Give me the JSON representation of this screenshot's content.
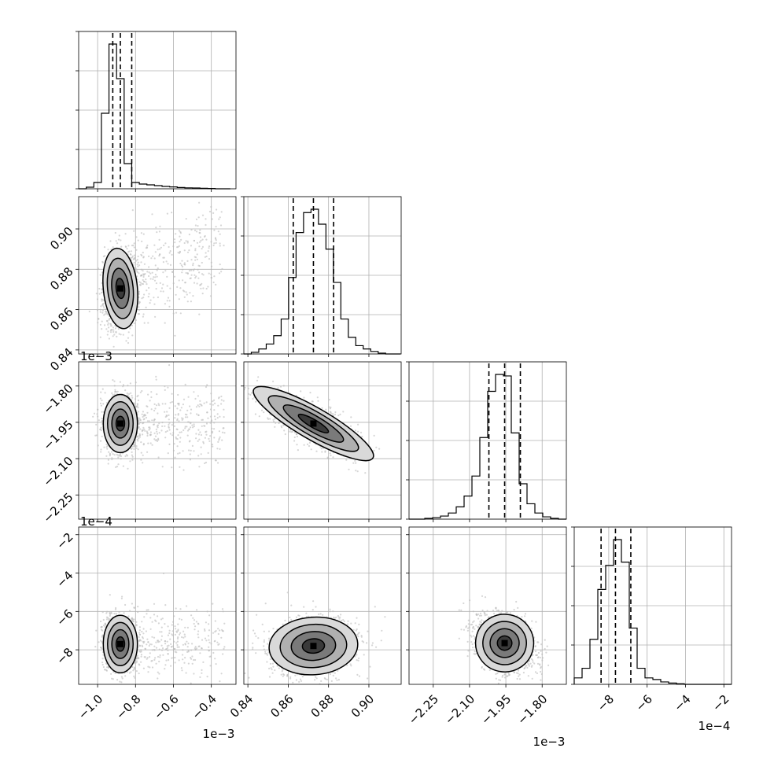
{
  "chart_data": {
    "type": "corner",
    "parameters": [
      {
        "index": 0,
        "offset_label": "1e−3",
        "ylim": null,
        "xlim": [
          -1.1,
          -0.27
        ],
        "ticks": [
          -1.0,
          -0.8,
          -0.6,
          -0.4
        ],
        "tick_labels": [
          "−1.0",
          "−0.8",
          "−0.6",
          "−0.4"
        ],
        "quantiles": [
          -0.92,
          -0.88,
          -0.82
        ]
      },
      {
        "index": 1,
        "offset_label": "",
        "xlim": [
          0.838,
          0.916
        ],
        "ticks": [
          0.84,
          0.86,
          0.88,
          0.9
        ],
        "tick_labels": [
          "0.84",
          "0.86",
          "0.88",
          "0.90"
        ],
        "quantiles": [
          0.8625,
          0.8725,
          0.8825
        ]
      },
      {
        "index": 2,
        "offset_label": "1e−3",
        "xlim": [
          -2.35,
          -1.7
        ],
        "ticks": [
          -2.25,
          -2.1,
          -1.95,
          -1.8
        ],
        "tick_labels": [
          "−2.25",
          "−2.10",
          "−1.95",
          "−1.80"
        ],
        "quantiles": [
          -2.02,
          -1.955,
          -1.89
        ]
      },
      {
        "index": 3,
        "offset_label": "1e−4",
        "xlim": [
          -9.8,
          -1.6
        ],
        "ticks": [
          -8,
          -6,
          -4,
          -2
        ],
        "tick_labels": [
          "−8",
          "−6",
          "−4",
          "−2"
        ],
        "quantiles": [
          -8.4,
          -7.65,
          -6.85
        ]
      }
    ],
    "row_offset_labels": [
      "",
      "1e−3",
      "1e−4"
    ],
    "histograms": [
      {
        "param": 0,
        "bin_edges_start": -1.1,
        "bin_width": 0.04,
        "counts": [
          0.0,
          0.01,
          0.04,
          0.48,
          0.92,
          0.7,
          0.16,
          0.04,
          0.03,
          0.025,
          0.02,
          0.015,
          0.012,
          0.008,
          0.006,
          0.005,
          0.003,
          0.002,
          0.0,
          0.0
        ]
      },
      {
        "param": 1,
        "bin_edges_start": 0.838,
        "bin_width": 0.0037,
        "counts": [
          0.0,
          0.01,
          0.03,
          0.06,
          0.11,
          0.21,
          0.46,
          0.73,
          0.85,
          0.87,
          0.78,
          0.63,
          0.43,
          0.21,
          0.1,
          0.05,
          0.03,
          0.015,
          0.005,
          0.0,
          0.0
        ]
      },
      {
        "param": 2,
        "bin_edges_start": -2.35,
        "bin_width": 0.0325,
        "counts": [
          0.0,
          0.0,
          0.005,
          0.01,
          0.02,
          0.04,
          0.08,
          0.15,
          0.28,
          0.53,
          0.83,
          0.94,
          0.93,
          0.56,
          0.23,
          0.1,
          0.04,
          0.015,
          0.005,
          0.0
        ]
      },
      {
        "param": 3,
        "bin_edges_start": -9.8,
        "bin_width": 0.41,
        "counts": [
          0.04,
          0.1,
          0.28,
          0.59,
          0.74,
          0.9,
          0.76,
          0.35,
          0.1,
          0.04,
          0.03,
          0.015,
          0.008,
          0.004,
          0.0,
          0.0,
          0.0,
          0.0,
          0.0,
          0.0
        ]
      }
    ],
    "pair_panels": [
      {
        "x": 0,
        "y": 1,
        "y_ticks": [
          0.84,
          0.86,
          0.88,
          0.9
        ],
        "y_tick_labels": [
          "0.84",
          "0.86",
          "0.88",
          "0.90"
        ],
        "ylim": [
          0.838,
          0.916
        ],
        "center": [
          -0.88,
          0.8705
        ],
        "spread": [
          0.045,
          0.01
        ],
        "rho": 0.15
      },
      {
        "x": 0,
        "y": 2,
        "y_ticks": [
          -2.25,
          -2.1,
          -1.95,
          -1.8
        ],
        "y_tick_labels": [
          "−2.25",
          "−2.10",
          "−1.95",
          "−1.80"
        ],
        "ylim": [
          -2.35,
          -1.7
        ],
        "center": [
          -0.88,
          -1.955
        ],
        "spread": [
          0.045,
          0.06
        ],
        "rho": 0.0
      },
      {
        "x": 1,
        "y": 2,
        "center": [
          0.8725,
          -1.955
        ],
        "spread": [
          0.011,
          0.06
        ],
        "rho": -0.75
      },
      {
        "x": 0,
        "y": 3,
        "y_ticks": [
          -8,
          -6,
          -4,
          -2
        ],
        "y_tick_labels": [
          "−8",
          "−6",
          "−4",
          "−2"
        ],
        "ylim": [
          -9.8,
          -1.6
        ],
        "center": [
          -0.88,
          -7.7
        ],
        "spread": [
          0.045,
          0.75
        ],
        "rho": 0.0
      },
      {
        "x": 1,
        "y": 3,
        "center": [
          0.8725,
          -7.8
        ],
        "spread": [
          0.011,
          0.75
        ],
        "rho": 0.1
      },
      {
        "x": 2,
        "y": 3,
        "center": [
          -1.955,
          -7.65
        ],
        "spread": [
          0.06,
          0.75
        ],
        "rho": -0.3
      }
    ],
    "contour_levels_sigma": [
      0.5,
      1.0,
      1.5,
      2.0
    ],
    "grid": true,
    "colors": {
      "hist": "#000000",
      "points": "#bbbbbb",
      "grid": "#b0b0b0"
    }
  }
}
